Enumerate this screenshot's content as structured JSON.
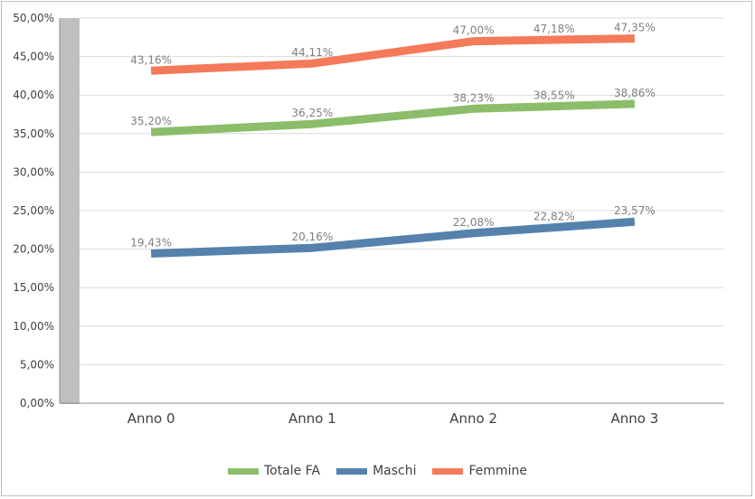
{
  "chart_data": {
    "type": "line",
    "categories": [
      "Anno 0",
      "Anno 1",
      "Anno 2",
      "Anno 3"
    ],
    "ylim": [
      0,
      50
    ],
    "yticks": [
      "0,00%",
      "5,00%",
      "10,00%",
      "15,00%",
      "20,00%",
      "25,00%",
      "30,00%",
      "35,00%",
      "40,00%",
      "45,00%",
      "50,00%"
    ],
    "grid": true,
    "legend_position": "bottom",
    "series": [
      {
        "name": "Totale FA",
        "color": "#8cbd6a",
        "values": [
          35.2,
          36.25,
          38.23,
          38.86
        ],
        "labels": [
          "35,20%",
          "36,25%",
          "38,23%",
          "38,86%"
        ],
        "mid_value": 38.55,
        "mid_label": "38,55%"
      },
      {
        "name": "Maschi",
        "color": "#5482ad",
        "values": [
          19.43,
          20.16,
          22.08,
          23.57
        ],
        "labels": [
          "19,43%",
          "20,16%",
          "22,08%",
          "23,57%"
        ],
        "mid_value": 22.82,
        "mid_label": "22,82%"
      },
      {
        "name": "Femmine",
        "color": "#f47a5a",
        "values": [
          43.16,
          44.11,
          47.0,
          47.35
        ],
        "labels": [
          "43,16%",
          "44,11%",
          "47,00%",
          "47,35%"
        ],
        "mid_value": 47.18,
        "mid_label": "47,18%"
      }
    ]
  }
}
